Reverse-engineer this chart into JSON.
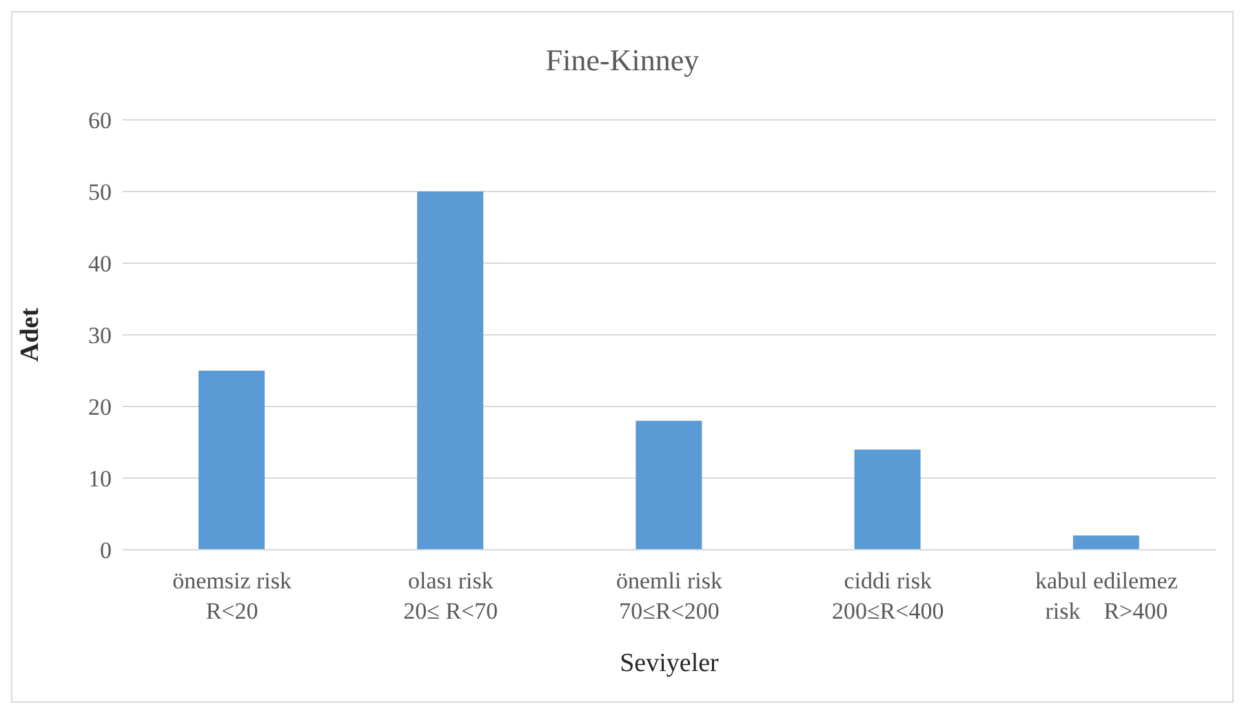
{
  "chart_data": {
    "type": "bar",
    "title": "Fine-Kinney",
    "xlabel": "Seviyeler",
    "ylabel": "Adet",
    "categories": [
      "önemsiz risk\nR<20",
      "olası risk\n20≤ R<70",
      "önemli risk\n70≤R<200",
      "ciddi risk\n200≤R<400",
      "kabul edilemez\nrisk    R>400"
    ],
    "values": [
      25,
      50,
      18,
      14,
      2
    ],
    "color": "#5b9bd5",
    "ylim": [
      0,
      60
    ],
    "yticks": [
      0,
      10,
      20,
      30,
      40,
      50,
      60
    ],
    "grid": "y"
  }
}
